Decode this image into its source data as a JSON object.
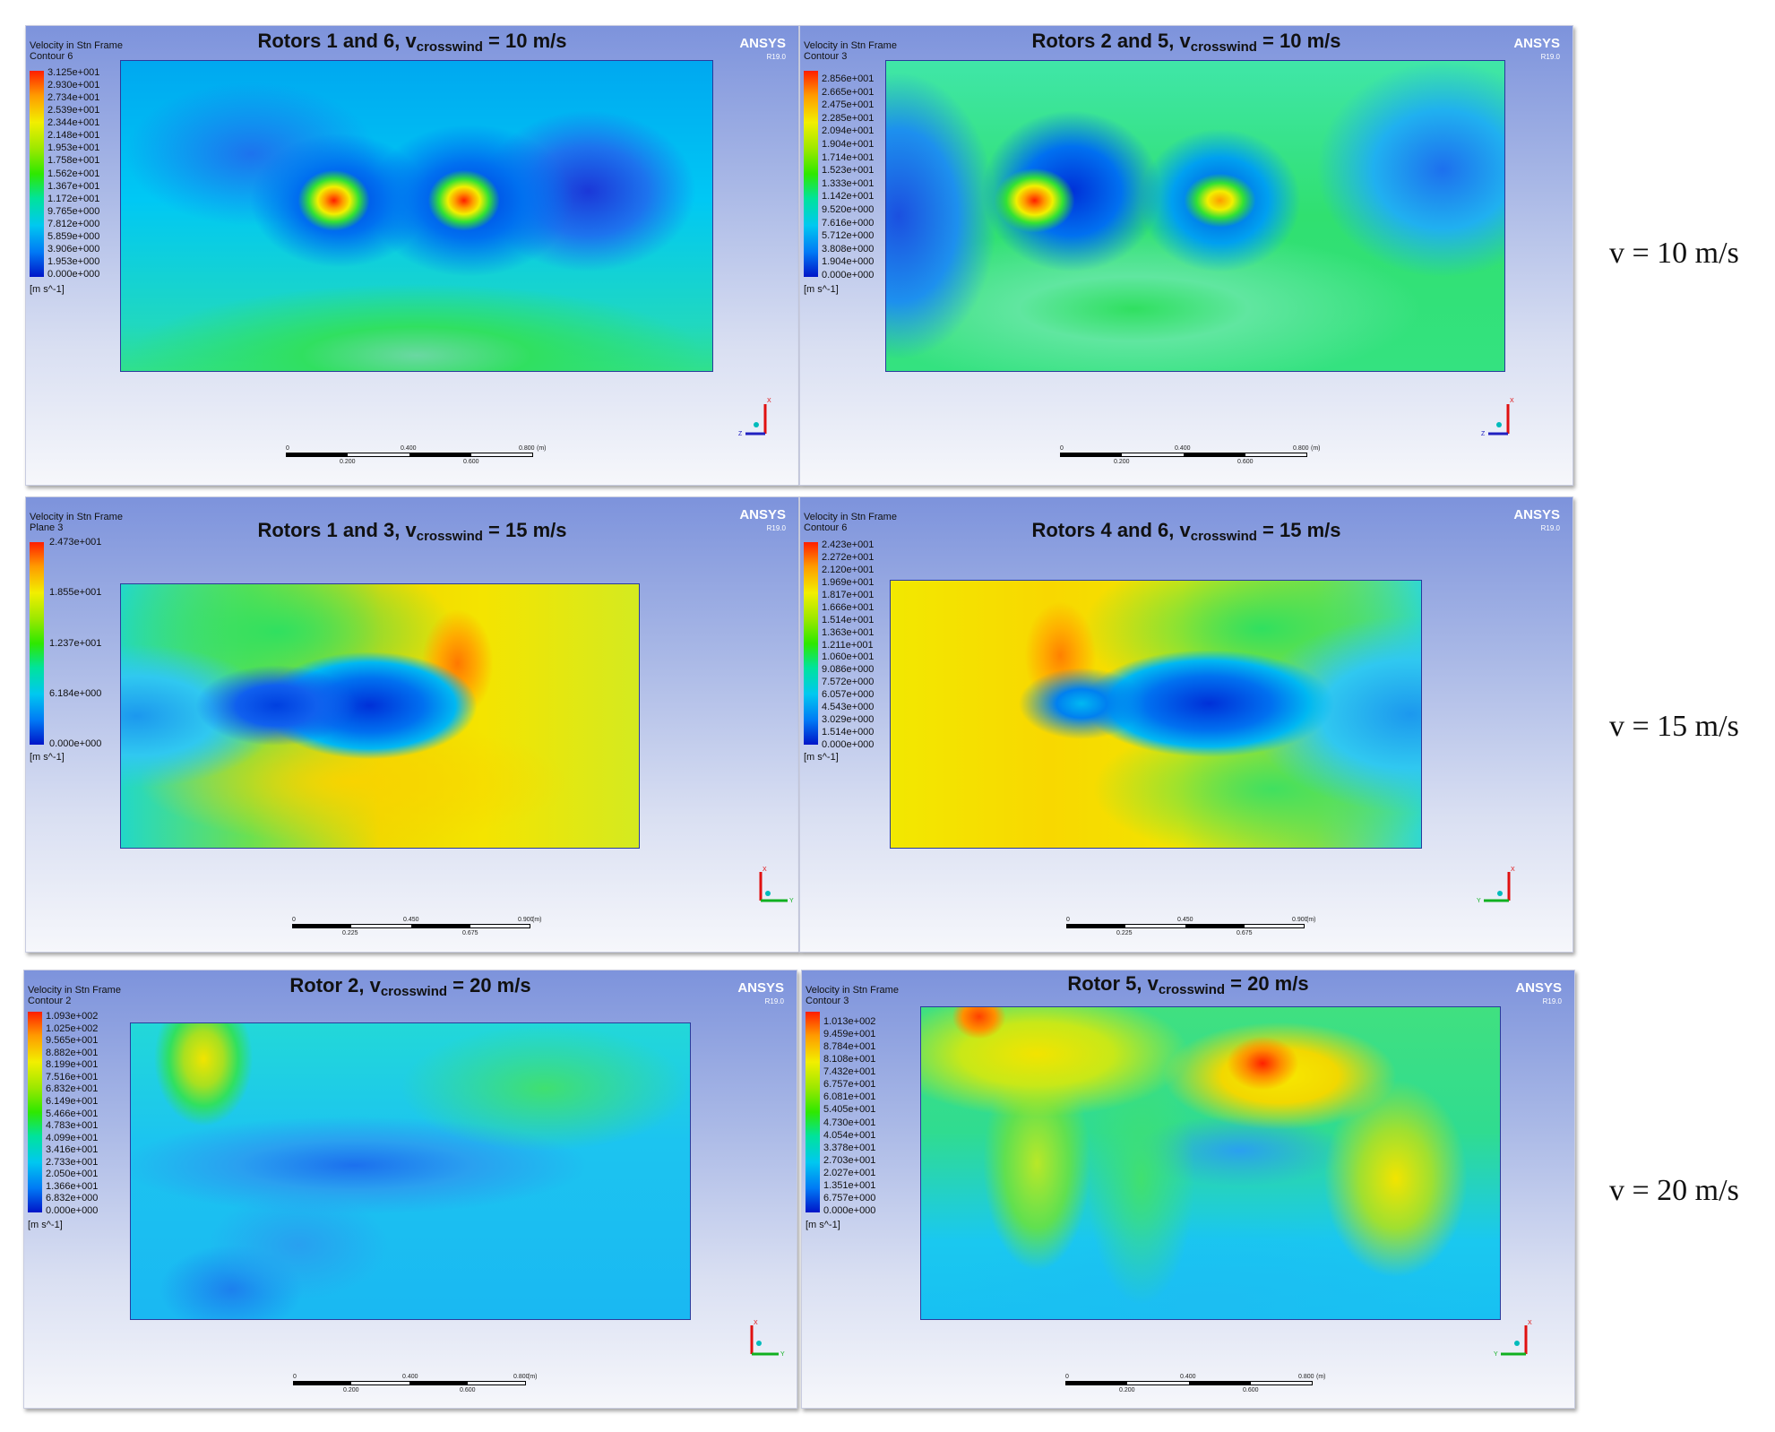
{
  "colors": {
    "blue": "#0018d0",
    "cyan": "#00d8f6",
    "green": "#33e233",
    "yellow": "#f2ee00",
    "orange": "#ff9a00",
    "red": "#ff1e00"
  },
  "row_labels": [
    "v = 10 m/s",
    "v = 15 m/s",
    "v = 20 m/s"
  ],
  "panels": [
    {
      "title_pre": "Rotors 1 and 6, v",
      "title_sub": "crosswind",
      "title_post": " = 10 m/s",
      "var_name": "Velocity in Stn Frame",
      "contour": "Contour 6",
      "brand": "ANSYS",
      "version": "R19.0",
      "legend": [
        "3.125e+001",
        "2.930e+001",
        "2.734e+001",
        "2.539e+001",
        "2.344e+001",
        "2.148e+001",
        "1.953e+001",
        "1.758e+001",
        "1.562e+001",
        "1.367e+001",
        "1.172e+001",
        "9.765e+000",
        "7.812e+000",
        "5.859e+000",
        "3.906e+000",
        "1.953e+000",
        "0.000e+000"
      ],
      "unit": "[m s^-1]",
      "scale_top": [
        "0",
        "0.400",
        "0.800",
        "(m)"
      ],
      "scale_bottom": [
        "0.200",
        "0.600"
      ],
      "axis_labels": [
        "X",
        "Z"
      ]
    },
    {
      "title_pre": "Rotors 2 and 5, v",
      "title_sub": "crosswind",
      "title_post": " = 10 m/s",
      "var_name": "Velocity in Stn Frame",
      "contour": "Contour 3",
      "brand": "ANSYS",
      "version": "R19.0",
      "legend": [
        "2.856e+001",
        "2.665e+001",
        "2.475e+001",
        "2.285e+001",
        "2.094e+001",
        "1.904e+001",
        "1.714e+001",
        "1.523e+001",
        "1.333e+001",
        "1.142e+001",
        "9.520e+000",
        "7.616e+000",
        "5.712e+000",
        "3.808e+000",
        "1.904e+000",
        "0.000e+000"
      ],
      "unit": "[m s^-1]",
      "scale_top": [
        "0",
        "0.400",
        "0.800",
        "(m)"
      ],
      "scale_bottom": [
        "0.200",
        "0.600"
      ],
      "axis_labels": [
        "X",
        "Z"
      ]
    },
    {
      "title_pre": "Rotors 1 and 3, v",
      "title_sub": "crosswind",
      "title_post": " = 15 m/s",
      "var_name": "Velocity in Stn Frame",
      "contour": "Plane 3",
      "brand": "ANSYS",
      "version": "R19.0",
      "legend": [
        "2.473e+001",
        "1.855e+001",
        "1.237e+001",
        "6.184e+000",
        "0.000e+000"
      ],
      "unit": "[m s^-1]",
      "scale_top": [
        "0",
        "0.450",
        "0.900",
        "(m)"
      ],
      "scale_bottom": [
        "0.225",
        "0.675"
      ],
      "axis_labels": [
        "X",
        "Y"
      ]
    },
    {
      "title_pre": "Rotors 4 and 6, v",
      "title_sub": "crosswind",
      "title_post": " = 15 m/s",
      "var_name": "Velocity in Stn Frame",
      "contour": "Contour 6",
      "brand": "ANSYS",
      "version": "R19.0",
      "legend": [
        "2.423e+001",
        "2.272e+001",
        "2.120e+001",
        "1.969e+001",
        "1.817e+001",
        "1.666e+001",
        "1.514e+001",
        "1.363e+001",
        "1.211e+001",
        "1.060e+001",
        "9.086e+000",
        "7.572e+000",
        "6.057e+000",
        "4.543e+000",
        "3.029e+000",
        "1.514e+000",
        "0.000e+000"
      ],
      "unit": "[m s^-1]",
      "scale_top": [
        "0",
        "0.450",
        "0.900",
        "(m)"
      ],
      "scale_bottom": [
        "0.225",
        "0.675"
      ],
      "axis_labels": [
        "X",
        "Y"
      ]
    },
    {
      "title_pre": "Rotor 2, v",
      "title_sub": "crosswind",
      "title_post": " = 20 m/s",
      "var_name": "Velocity in Stn Frame",
      "contour": "Contour 2",
      "brand": "ANSYS",
      "version": "R19.0",
      "legend": [
        "1.093e+002",
        "1.025e+002",
        "9.565e+001",
        "8.882e+001",
        "8.199e+001",
        "7.516e+001",
        "6.832e+001",
        "6.149e+001",
        "5.466e+001",
        "4.783e+001",
        "4.099e+001",
        "3.416e+001",
        "2.733e+001",
        "2.050e+001",
        "1.366e+001",
        "6.832e+000",
        "0.000e+000"
      ],
      "unit": "[m s^-1]",
      "scale_top": [
        "0",
        "0.400",
        "0.800",
        "(m)"
      ],
      "scale_bottom": [
        "0.200",
        "0.600"
      ],
      "axis_labels": [
        "X",
        "Y"
      ]
    },
    {
      "title_pre": "Rotor 5, v",
      "title_sub": "crosswind",
      "title_post": " = 20 m/s",
      "var_name": "Velocity in Stn Frame",
      "contour": "Contour 3",
      "brand": "ANSYS",
      "version": "R19.0",
      "legend": [
        "1.013e+002",
        "9.459e+001",
        "8.784e+001",
        "8.108e+001",
        "7.432e+001",
        "6.757e+001",
        "6.081e+001",
        "5.405e+001",
        "4.730e+001",
        "4.054e+001",
        "3.378e+001",
        "2.703e+001",
        "2.027e+001",
        "1.351e+001",
        "6.757e+000",
        "0.000e+000"
      ],
      "unit": "[m s^-1]",
      "scale_top": [
        "0",
        "0.400",
        "0.800",
        "(m)"
      ],
      "scale_bottom": [
        "0.200",
        "0.600"
      ],
      "axis_labels": [
        "X",
        "Y"
      ]
    }
  ]
}
